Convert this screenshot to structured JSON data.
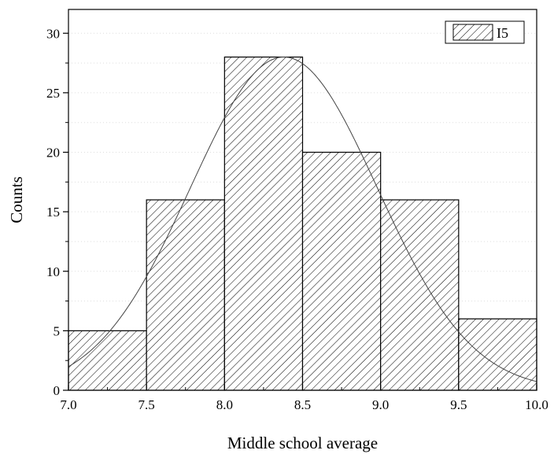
{
  "chart_data": {
    "type": "bar",
    "subtype": "histogram",
    "bins": [
      {
        "x0": 7.0,
        "x1": 7.5,
        "count": 5
      },
      {
        "x0": 7.5,
        "x1": 8.0,
        "count": 16
      },
      {
        "x0": 8.0,
        "x1": 8.5,
        "count": 28
      },
      {
        "x0": 8.5,
        "x1": 9.0,
        "count": 20
      },
      {
        "x0": 9.0,
        "x1": 9.5,
        "count": 16
      },
      {
        "x0": 9.5,
        "x1": 10.0,
        "count": 6
      }
    ],
    "fit_curve": {
      "type": "normal",
      "mean": 8.38,
      "peak": 28,
      "sigma": 0.6
    },
    "xlabel": "Middle school average",
    "ylabel": "Counts",
    "xlim": [
      7.0,
      10.0
    ],
    "ylim": [
      0,
      32
    ],
    "xticks": [
      "7.0",
      "7.5",
      "8.0",
      "8.5",
      "9.0",
      "9.5",
      "10.0"
    ],
    "yticks": [
      "0",
      "5",
      "10",
      "15",
      "20",
      "25",
      "30"
    ],
    "grid": true,
    "legend": {
      "position": "top-right",
      "entries": [
        "I5"
      ]
    },
    "colors": {
      "bar_fill": "#ffffff",
      "hatch": "#000000",
      "grid": "#dddddd",
      "axis": "#000000"
    }
  }
}
